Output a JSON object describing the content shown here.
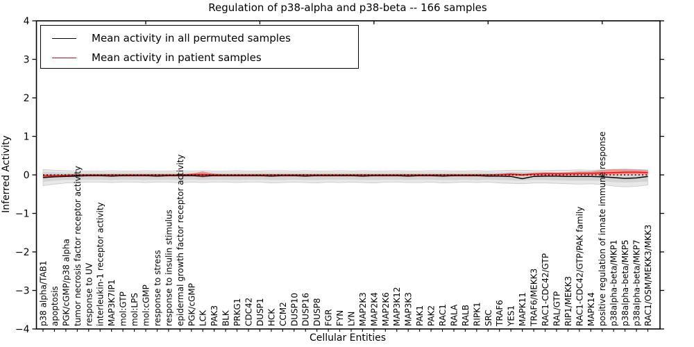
{
  "title": "Regulation of p38-alpha and p38-beta -- 166 samples",
  "axes": {
    "x_label": "Cellular Entities",
    "y_label": "Inferred Activity",
    "y_ticks": [
      4,
      3,
      2,
      1,
      0,
      -1,
      -2,
      -3,
      -4
    ]
  },
  "legend": {
    "entries": [
      {
        "label": "Mean activity in all permuted samples",
        "color": "#000000"
      },
      {
        "label": "Mean activity in patient samples",
        "color": "#ff0000"
      }
    ]
  },
  "colors": {
    "permuted_line": "#000000",
    "patient_line": "#ff0000",
    "patient_band": "#ff3333",
    "permuted_band_outer": "#e8e8e8",
    "permuted_band_inner": "#d4d4d4",
    "zero_line": "#000000",
    "frame": "#000000"
  },
  "chart_data": {
    "type": "line",
    "title": "Regulation of p38-alpha and p38-beta -- 166 samples",
    "xlabel": "Cellular Entities",
    "ylabel": "Inferred Activity",
    "ylim": [
      -4,
      4
    ],
    "grid": false,
    "legend_position": "upper left",
    "top_tick_indices": [
      9,
      19,
      29,
      39,
      49
    ],
    "categories": [
      "p38 alpha/TAB1",
      "apoptosis",
      "PGK/cGMP/p38 alpha",
      "tumor necrosis factor receptor activity",
      "response to UV",
      "interleukin-1 receptor activity",
      "MAP3K7IP1",
      "mol:GTP",
      "mol:LPS",
      "mol:cGMP",
      "response to stress",
      "response to insulin stimulus",
      "epidermal growth factor receptor activity",
      "PGK/cGMP",
      "LCK",
      "PAK3",
      "BLK",
      "PRKG1",
      "CDC42",
      "DUSP1",
      "HCK",
      "CCM2",
      "DUSP10",
      "DUSP16",
      "DUSP8",
      "FGR",
      "FYN",
      "LYN",
      "MAP2K3",
      "MAP2K4",
      "MAP2K6",
      "MAP3K12",
      "MAP3K3",
      "PAK1",
      "PAK2",
      "RAC1",
      "RALA",
      "RALB",
      "RIPK1",
      "SRC",
      "TRAF6",
      "YES1",
      "MAPK11",
      "TRAF6/MEKK3",
      "RAC1-CDC42/GTP",
      "RAL/GTP",
      "RIP1/MEKK3",
      "RAC1-CDC42/GTP/PAK family",
      "MAPK14",
      "positive regulation of innate immune response",
      "p38alpha-beta/MKP1",
      "p38alpha-beta/MKP5",
      "p38alpha-beta/MKP7",
      "RAC1/OSM/MEKK3/MKK3"
    ],
    "series": [
      {
        "name": "Mean activity in all permuted samples",
        "values": [
          -0.07,
          -0.05,
          -0.04,
          -0.03,
          -0.02,
          -0.02,
          -0.03,
          -0.02,
          -0.02,
          -0.02,
          -0.03,
          -0.02,
          -0.02,
          -0.02,
          -0.03,
          -0.02,
          -0.02,
          -0.02,
          -0.02,
          -0.02,
          -0.03,
          -0.02,
          -0.02,
          -0.03,
          -0.02,
          -0.02,
          -0.02,
          -0.02,
          -0.03,
          -0.02,
          -0.02,
          -0.02,
          -0.03,
          -0.02,
          -0.02,
          -0.03,
          -0.02,
          -0.02,
          -0.02,
          -0.03,
          -0.03,
          -0.04,
          -0.1,
          -0.04,
          -0.03,
          -0.03,
          -0.04,
          -0.04,
          -0.04,
          -0.05,
          -0.07,
          -0.09,
          -0.08,
          -0.04
        ]
      },
      {
        "name": "Mean activity in patient samples",
        "values": [
          -0.03,
          -0.02,
          -0.01,
          0,
          0,
          0,
          0,
          0,
          0,
          0,
          0,
          0,
          0,
          0.01,
          0.01,
          0,
          0,
          0,
          0,
          0,
          0,
          0,
          0,
          0,
          0,
          0,
          0,
          0,
          0,
          0,
          0,
          0,
          0,
          0,
          0,
          0,
          0,
          0,
          0,
          0,
          0.01,
          0.02,
          0,
          0.02,
          0.03,
          0.03,
          0.03,
          0.04,
          0.04,
          0.05,
          0.06,
          0.07,
          0.07,
          0.06
        ]
      }
    ],
    "bands": {
      "permuted_outer_upper": [
        0.14,
        0.12,
        0.11,
        0.1,
        0.1,
        0.1,
        0.11,
        0.1,
        0.1,
        0.11,
        0.1,
        0.1,
        0.11,
        0.1,
        0.11,
        0.1,
        0.1,
        0.11,
        0.1,
        0.1,
        0.11,
        0.11,
        0.1,
        0.11,
        0.1,
        0.1,
        0.11,
        0.1,
        0.11,
        0.1,
        0.1,
        0.11,
        0.1,
        0.1,
        0.11,
        0.11,
        0.1,
        0.1,
        0.11,
        0.1,
        0.11,
        0.12,
        0.12,
        0.11,
        0.11,
        0.12,
        0.12,
        0.13,
        0.12,
        0.13,
        0.14,
        0.15,
        0.14,
        0.13
      ],
      "permuted_outer_lower": [
        -0.28,
        -0.24,
        -0.21,
        -0.2,
        -0.19,
        -0.19,
        -0.2,
        -0.19,
        -0.19,
        -0.2,
        -0.19,
        -0.19,
        -0.21,
        -0.19,
        -0.2,
        -0.19,
        -0.19,
        -0.2,
        -0.19,
        -0.19,
        -0.21,
        -0.2,
        -0.19,
        -0.2,
        -0.21,
        -0.19,
        -0.2,
        -0.19,
        -0.2,
        -0.21,
        -0.19,
        -0.19,
        -0.2,
        -0.2,
        -0.19,
        -0.21,
        -0.2,
        -0.19,
        -0.2,
        -0.19,
        -0.21,
        -0.22,
        -0.23,
        -0.21,
        -0.21,
        -0.22,
        -0.23,
        -0.24,
        -0.23,
        -0.25,
        -0.29,
        -0.31,
        -0.3,
        -0.26
      ],
      "permuted_inner_upper": [
        0.08,
        0.07,
        0.06,
        0.06,
        0.06,
        0.06,
        0.06,
        0.06,
        0.06,
        0.06,
        0.06,
        0.06,
        0.06,
        0.06,
        0.06,
        0.06,
        0.06,
        0.06,
        0.06,
        0.06,
        0.06,
        0.06,
        0.06,
        0.06,
        0.06,
        0.06,
        0.06,
        0.06,
        0.06,
        0.06,
        0.06,
        0.06,
        0.06,
        0.06,
        0.06,
        0.06,
        0.06,
        0.06,
        0.06,
        0.06,
        0.06,
        0.07,
        0.07,
        0.06,
        0.06,
        0.07,
        0.07,
        0.07,
        0.07,
        0.08,
        0.08,
        0.08,
        0.08,
        0.08
      ],
      "permuted_inner_lower": [
        -0.18,
        -0.15,
        -0.13,
        -0.12,
        -0.12,
        -0.12,
        -0.13,
        -0.12,
        -0.12,
        -0.13,
        -0.12,
        -0.12,
        -0.13,
        -0.12,
        -0.13,
        -0.12,
        -0.12,
        -0.13,
        -0.12,
        -0.12,
        -0.13,
        -0.13,
        -0.12,
        -0.13,
        -0.13,
        -0.12,
        -0.12,
        -0.12,
        -0.13,
        -0.13,
        -0.12,
        -0.12,
        -0.13,
        -0.12,
        -0.12,
        -0.13,
        -0.13,
        -0.12,
        -0.13,
        -0.12,
        -0.13,
        -0.14,
        -0.15,
        -0.13,
        -0.13,
        -0.14,
        -0.15,
        -0.15,
        -0.15,
        -0.16,
        -0.19,
        -0.2,
        -0.19,
        -0.17
      ],
      "patient_upper": [
        0.02,
        0.01,
        0.01,
        0.01,
        0.01,
        0.01,
        0.01,
        0.01,
        0.01,
        0.01,
        0.01,
        0.01,
        0.01,
        0.03,
        0.09,
        0.03,
        0.01,
        0.01,
        0.01,
        0.01,
        0.01,
        0.01,
        0.01,
        0.01,
        0.01,
        0.01,
        0.01,
        0.01,
        0.01,
        0.01,
        0.01,
        0.01,
        0.01,
        0.01,
        0.01,
        0.01,
        0.01,
        0.01,
        0.01,
        0.01,
        0.02,
        0.05,
        0.03,
        0.06,
        0.07,
        0.06,
        0.07,
        0.09,
        0.09,
        0.13,
        0.15,
        0.15,
        0.14,
        0.12
      ],
      "patient_lower": [
        -0.08,
        -0.05,
        -0.03,
        -0.02,
        -0.02,
        -0.02,
        -0.02,
        -0.02,
        -0.02,
        -0.02,
        -0.02,
        -0.02,
        -0.02,
        -0.02,
        -0.07,
        -0.02,
        -0.02,
        -0.02,
        -0.02,
        -0.02,
        -0.02,
        -0.02,
        -0.02,
        -0.02,
        -0.02,
        -0.02,
        -0.02,
        -0.02,
        -0.02,
        -0.02,
        -0.02,
        -0.02,
        -0.02,
        -0.02,
        -0.02,
        -0.02,
        -0.02,
        -0.02,
        -0.02,
        -0.02,
        -0.02,
        -0.02,
        -0.03,
        -0.01,
        -0.01,
        -0.01,
        -0.01,
        0.0,
        0.0,
        0.0,
        0.01,
        0.02,
        0.02,
        0.01
      ]
    }
  }
}
